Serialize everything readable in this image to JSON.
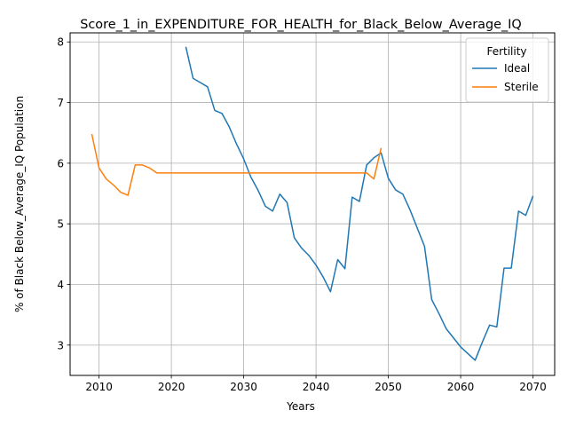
{
  "chart_data": {
    "type": "line",
    "title": "Score_1_in_EXPENDITURE_FOR_HEALTH_for_Black_Below_Average_IQ",
    "xlabel": "Years",
    "ylabel": "% of Black Below_Average_IQ Population",
    "xlim": [
      2006,
      2073
    ],
    "ylim": [
      2.5,
      8.15
    ],
    "xticks": [
      2010,
      2020,
      2030,
      2040,
      2050,
      2060,
      2070
    ],
    "yticks": [
      3,
      4,
      5,
      6,
      7,
      8
    ],
    "grid": true,
    "legend": {
      "title": "Fertility",
      "position": "top-right"
    },
    "series": [
      {
        "name": "Ideal",
        "color": "#1f77b4",
        "x": [
          2022,
          2023,
          2024,
          2025,
          2026,
          2027,
          2028,
          2029,
          2030,
          2031,
          2032,
          2033,
          2034,
          2035,
          2036,
          2037,
          2038,
          2039,
          2040,
          2041,
          2042,
          2043,
          2044,
          2045,
          2046,
          2047,
          2048,
          2049,
          2050,
          2051,
          2052,
          2053,
          2054,
          2055,
          2056,
          2057,
          2058,
          2059,
          2060,
          2061,
          2062,
          2063,
          2064,
          2065,
          2066,
          2067,
          2068,
          2069,
          2070
        ],
        "values": [
          7.92,
          7.4,
          7.33,
          7.26,
          6.87,
          6.82,
          6.6,
          6.32,
          6.07,
          5.77,
          5.55,
          5.29,
          5.21,
          5.49,
          5.35,
          4.77,
          4.6,
          4.48,
          4.32,
          4.12,
          3.88,
          4.41,
          4.26,
          5.44,
          5.37,
          5.97,
          6.09,
          6.17,
          5.75,
          5.56,
          5.49,
          5.23,
          4.93,
          4.63,
          3.75,
          3.52,
          3.27,
          3.12,
          2.97,
          2.86,
          2.75,
          3.05,
          3.33,
          3.3,
          4.27,
          4.27,
          5.21,
          5.14,
          5.46
        ]
      },
      {
        "name": "Sterile",
        "color": "#ff7f0e",
        "x": [
          2009,
          2010,
          2011,
          2012,
          2013,
          2014,
          2015,
          2016,
          2017,
          2018,
          2019,
          2020,
          2021,
          2022,
          2023,
          2024,
          2025,
          2026,
          2027,
          2028,
          2029,
          2030,
          2031,
          2032,
          2033,
          2034,
          2035,
          2036,
          2037,
          2038,
          2039,
          2040,
          2041,
          2042,
          2043,
          2044,
          2045,
          2046,
          2047,
          2048,
          2049
        ],
        "values": [
          6.48,
          5.92,
          5.74,
          5.64,
          5.52,
          5.47,
          5.97,
          5.97,
          5.92,
          5.84,
          5.84,
          5.84,
          5.84,
          5.84,
          5.84,
          5.84,
          5.84,
          5.84,
          5.84,
          5.84,
          5.84,
          5.84,
          5.84,
          5.84,
          5.84,
          5.84,
          5.84,
          5.84,
          5.84,
          5.84,
          5.84,
          5.84,
          5.84,
          5.84,
          5.84,
          5.84,
          5.84,
          5.84,
          5.84,
          5.74,
          6.25
        ]
      }
    ]
  }
}
